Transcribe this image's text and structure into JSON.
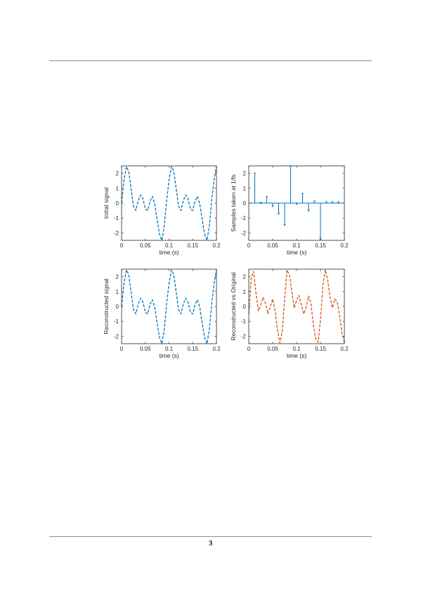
{
  "page": {
    "number": "3"
  },
  "chart_data": [
    {
      "type": "line",
      "ylabel": "Initial signal",
      "xlabel": "time (s)",
      "xlim": [
        0,
        0.2
      ],
      "ylim": [
        -2.5,
        2.5
      ],
      "xticks": [
        0,
        0.05,
        0.1,
        0.15,
        0.2
      ],
      "xtick_labels": [
        "0",
        "0.05",
        "0.1",
        "0.15",
        "0.2"
      ],
      "yticks": [
        2,
        1,
        0,
        -1,
        -2
      ],
      "ytick_labels": [
        "2",
        "1",
        "0",
        "-1",
        "-2"
      ],
      "line_style": "dashed",
      "color": "#0072bd",
      "series": [
        {
          "x": [
            0,
            0.005,
            0.01,
            0.015,
            0.02,
            0.025,
            0.03,
            0.035,
            0.04,
            0.045,
            0.05,
            0.055,
            0.06,
            0.065,
            0.07,
            0.075,
            0.08,
            0.085,
            0.09,
            0.095,
            0.1,
            0.105,
            0.11,
            0.115,
            0.12,
            0.125,
            0.13,
            0.135,
            0.14,
            0.145,
            0.15,
            0.155,
            0.16,
            0.165,
            0.17,
            0.175,
            0.18,
            0.185,
            0.19,
            0.195,
            0.2
          ],
          "y": [
            0,
            1.55,
            2.45,
            2.15,
            1.0,
            -0.2,
            -0.5,
            0.15,
            0.55,
            0.3,
            -0.4,
            -0.5,
            0.15,
            0.45,
            -0.1,
            -1.15,
            -2.1,
            -2.5,
            -1.5,
            0.2,
            1.55,
            2.45,
            2.15,
            1.0,
            -0.2,
            -0.5,
            0.15,
            0.55,
            0.3,
            -0.4,
            -0.5,
            0.15,
            0.45,
            -0.1,
            -1.15,
            -2.1,
            -2.5,
            -1.5,
            0.2,
            1.55,
            2.45
          ]
        }
      ]
    },
    {
      "type": "stem",
      "ylabel": "Samples taken at 1/fs",
      "xlabel": "time (s)",
      "xlim": [
        0,
        0.2
      ],
      "ylim": [
        -2.5,
        2.5
      ],
      "xticks": [
        0,
        0.05,
        0.1,
        0.15,
        0.2
      ],
      "xtick_labels": [
        "0",
        "0.05",
        "0.1",
        "0.15",
        "0.2"
      ],
      "yticks": [
        2,
        1,
        0,
        -1,
        -2
      ],
      "ytick_labels": [
        "2",
        "1",
        "0",
        "-1",
        "-2"
      ],
      "marker": "*",
      "color": "#0072bd",
      "series": [
        {
          "x": [
            0.0125,
            0.025,
            0.0375,
            0.05,
            0.0625,
            0.075,
            0.0875,
            0.1,
            0.1125,
            0.125,
            0.1375,
            0.15,
            0.1625,
            0.175,
            0.1875
          ],
          "y": [
            1.9,
            -0.05,
            0.35,
            -0.25,
            -0.75,
            -1.5,
            2.4,
            -0.1,
            0.55,
            -0.55,
            0.05,
            -2.45,
            0.0,
            0.0,
            0.0
          ]
        }
      ]
    },
    {
      "type": "line",
      "ylabel": "Reconstructed signal",
      "xlabel": "time (s)",
      "xlim": [
        0,
        0.2
      ],
      "ylim": [
        -2.5,
        2.5
      ],
      "xticks": [
        0,
        0.05,
        0.1,
        0.15,
        0.2
      ],
      "xtick_labels": [
        "0",
        "0.05",
        "0.1",
        "0.15",
        "0.2"
      ],
      "yticks": [
        2,
        1,
        0,
        -1,
        -2
      ],
      "ytick_labels": [
        "2",
        "1",
        "0",
        "-1",
        "-2"
      ],
      "line_style": "dashed",
      "color": "#0072bd",
      "series": [
        {
          "x": [
            0,
            0.005,
            0.01,
            0.015,
            0.02,
            0.025,
            0.03,
            0.035,
            0.04,
            0.045,
            0.05,
            0.055,
            0.06,
            0.065,
            0.07,
            0.075,
            0.08,
            0.085,
            0.09,
            0.095,
            0.1,
            0.105,
            0.11,
            0.115,
            0.12,
            0.125,
            0.13,
            0.135,
            0.14,
            0.145,
            0.15,
            0.155,
            0.16,
            0.165,
            0.17,
            0.175,
            0.18,
            0.185,
            0.19,
            0.195,
            0.2
          ],
          "y": [
            0,
            1.55,
            2.45,
            2.15,
            1.0,
            -0.2,
            -0.5,
            0.15,
            0.55,
            0.3,
            -0.4,
            -0.5,
            0.15,
            0.45,
            -0.1,
            -1.15,
            -2.1,
            -2.5,
            -1.5,
            0.2,
            1.55,
            2.45,
            2.15,
            1.0,
            -0.2,
            -0.5,
            0.15,
            0.55,
            0.3,
            -0.4,
            -0.5,
            0.15,
            0.45,
            -0.1,
            -1.15,
            -2.1,
            -2.5,
            -1.5,
            0.2,
            1.55,
            2.45
          ]
        }
      ]
    },
    {
      "type": "line",
      "ylabel": "Reconstructed vs Original",
      "xlabel": "time (s)",
      "xlim": [
        0,
        0.2
      ],
      "ylim": [
        -2.5,
        2.5
      ],
      "xticks": [
        0,
        0.05,
        0.1,
        0.15,
        0.2
      ],
      "xtick_labels": [
        "0",
        "0.05",
        "0.1",
        "0.15",
        "0.2"
      ],
      "yticks": [
        2,
        1,
        0,
        -1,
        -2
      ],
      "ytick_labels": [
        "2",
        "1",
        "0",
        "-1",
        "-2"
      ],
      "line_style": "dashed",
      "color": "#d95319",
      "series": [
        {
          "x": [
            0,
            0.005,
            0.01,
            0.015,
            0.02,
            0.025,
            0.03,
            0.035,
            0.04,
            0.045,
            0.05,
            0.055,
            0.06,
            0.065,
            0.07,
            0.075,
            0.08,
            0.085,
            0.09,
            0.095,
            0.1,
            0.105,
            0.11,
            0.115,
            0.12,
            0.125,
            0.13,
            0.135,
            0.14,
            0.145,
            0.15,
            0.155,
            0.16,
            0.165,
            0.17,
            0.175,
            0.18,
            0.185,
            0.19,
            0.195,
            0.2
          ],
          "y": [
            -0.5,
            1.9,
            2.35,
            0.9,
            -0.3,
            0.1,
            0.6,
            0.2,
            -0.5,
            0.0,
            0.5,
            -0.3,
            -1.6,
            -2.45,
            -1.7,
            0.5,
            2.45,
            2.1,
            1.0,
            -0.1,
            0.4,
            0.75,
            0.1,
            -0.5,
            -0.1,
            0.7,
            0.2,
            -1.2,
            -2.2,
            -2.4,
            -0.9,
            1.4,
            2.45,
            1.8,
            0.6,
            -0.1,
            0.5,
            0.3,
            -0.6,
            -1.8,
            -2.45
          ]
        }
      ]
    }
  ]
}
